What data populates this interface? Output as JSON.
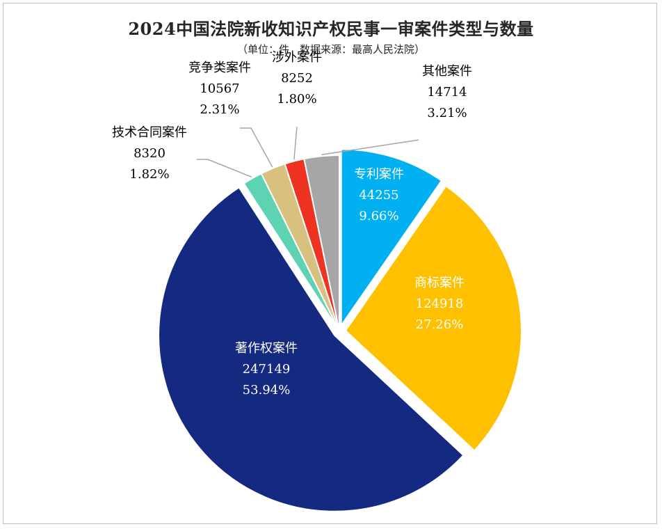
{
  "title": "2024中国法院新收知识产权民事一审案件类型与数量",
  "subtitle": "（单位：件　数据来源：最高人民法院）",
  "chart_data": {
    "type": "pie",
    "title": "2024中国法院新收知识产权民事一审案件类型与数量",
    "subtitle": "（单位：件　数据来源：最高人民法院）",
    "slices": [
      {
        "name": "专利案件",
        "value": 44255,
        "percent_label": "9.66%",
        "color": "#00B0F0",
        "label_color": "#ffffff",
        "exploded": true
      },
      {
        "name": "商标案件",
        "value": 124918,
        "percent_label": "27.26%",
        "color": "#FFC000",
        "label_color": "#ffffff",
        "exploded": true
      },
      {
        "name": "著作权案件",
        "value": 247149,
        "percent_label": "53.94%",
        "color": "#142A80",
        "label_color": "#ffffff",
        "exploded": true
      },
      {
        "name": "技术合同案件",
        "value": 8320,
        "percent_label": "1.82%",
        "color": "#5DD3B4",
        "label_color": "#000000",
        "exploded": false
      },
      {
        "name": "竞争类案件",
        "value": 10567,
        "percent_label": "2.31%",
        "color": "#D8C07E",
        "label_color": "#000000",
        "exploded": false
      },
      {
        "name": "涉外案件",
        "value": 8252,
        "percent_label": "1.80%",
        "color": "#EE3323",
        "label_color": "#000000",
        "exploded": false
      },
      {
        "name": "其他案件",
        "value": 14714,
        "percent_label": "3.21%",
        "color": "#A6A6A6",
        "label_color": "#000000",
        "exploded": false
      }
    ]
  }
}
